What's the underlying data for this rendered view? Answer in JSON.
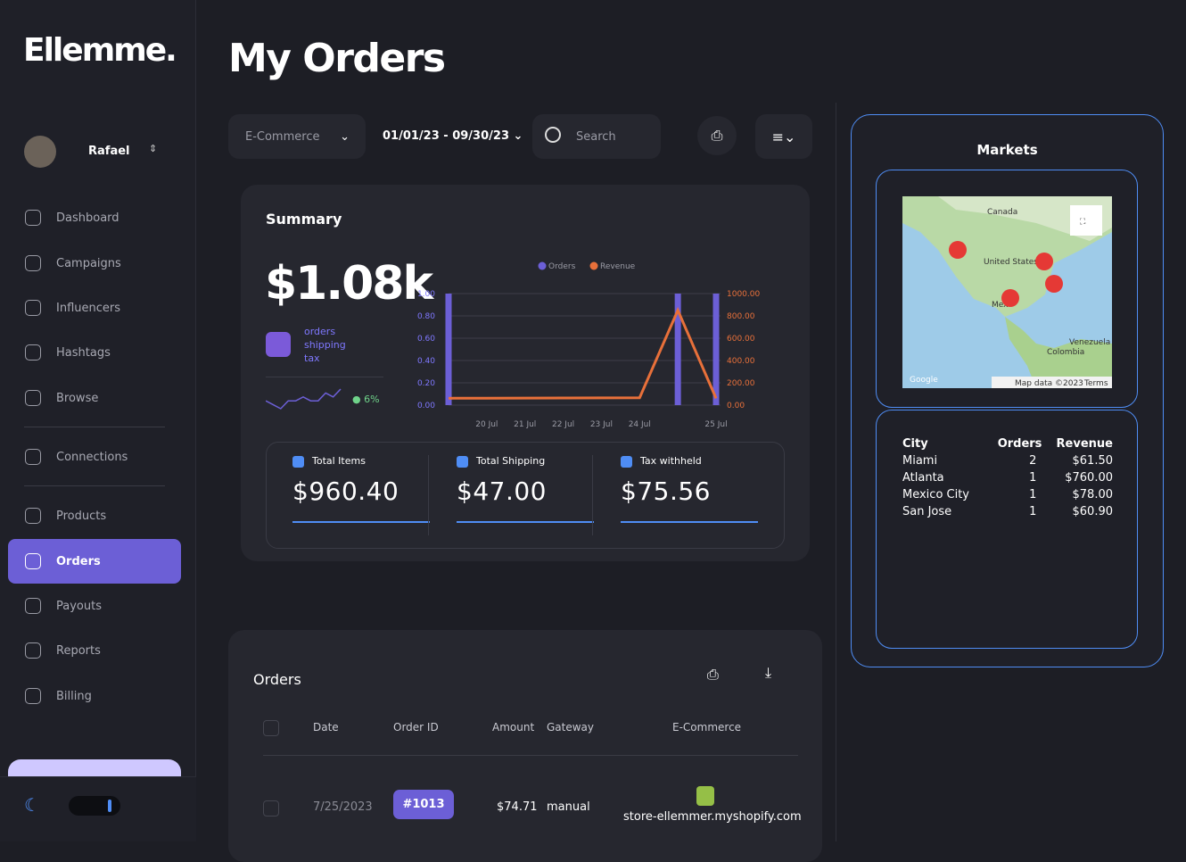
{
  "brand": "Ellemme.",
  "user": "Rafael",
  "nav": [
    "Dashboard",
    "Campaigns",
    "Influencers",
    "Hashtags",
    "Browse",
    "Connections",
    "Products",
    "Orders",
    "Payouts",
    "Reports",
    "Billing"
  ],
  "page_title": "My Orders",
  "filters": {
    "ecommerce": "E-Commerce",
    "date_range": "01/01/23 - 09/30/23",
    "search": "Search"
  },
  "summary": {
    "title": "Summary",
    "total": "$1.08k",
    "breakdown": [
      "orders",
      "shipping",
      "tax"
    ],
    "change": "6%",
    "sparkline": [
      3,
      2,
      1,
      3,
      3,
      4,
      3,
      3,
      5,
      4,
      6
    ],
    "stats": [
      {
        "label": "Total Items",
        "value": "$960.40"
      },
      {
        "label": "Total Shipping",
        "value": "$47.00"
      },
      {
        "label": "Tax withheld",
        "value": "$75.56"
      }
    ]
  },
  "chart_data": {
    "type": "combo",
    "categories": [
      null,
      "20 Jul",
      "21 Jul",
      "22 Jul",
      "23 Jul",
      "24 Jul",
      null,
      "25 Jul"
    ],
    "series": [
      {
        "name": "Orders",
        "color": "#6c5fd6",
        "kind": "bar",
        "values": [
          1,
          0,
          0,
          0,
          0,
          0,
          1,
          1
        ]
      },
      {
        "name": "Revenue",
        "color": "#e8703a",
        "kind": "line",
        "axis": "y2",
        "values": [
          61.5,
          62,
          63,
          64,
          65,
          66,
          850,
          60.9
        ]
      }
    ],
    "ylim": [
      0,
      1
    ],
    "yticks": [
      {
        "value": 0,
        "label": "0.00"
      },
      {
        "value": 0.2,
        "label": "0.20"
      },
      {
        "value": 0.4,
        "label": "0.40"
      },
      {
        "value": 0.6,
        "label": "0.60"
      },
      {
        "value": 0.8,
        "label": "0.80"
      },
      {
        "value": 1,
        "label": "1.00"
      }
    ],
    "y2lim": [
      0,
      1000
    ],
    "y2ticks": [
      {
        "value": 0,
        "label": "0.00"
      },
      {
        "value": 200,
        "label": "200.00"
      },
      {
        "value": 400,
        "label": "400.00"
      },
      {
        "value": 600,
        "label": "600.00"
      },
      {
        "value": 800,
        "label": "800.00"
      },
      {
        "value": 1000,
        "label": "1000.00"
      }
    ],
    "grid": true,
    "legend": "top"
  },
  "markets": {
    "title": "Markets",
    "map_labels": [
      "Canada",
      "United States",
      "Mex",
      "Venezuela",
      "Colombia"
    ],
    "map_brand": "Google",
    "map_footer": [
      "Map data ©2023",
      "Terms"
    ],
    "table": {
      "columns": [
        "City",
        "Orders",
        "Revenue"
      ],
      "rows": [
        [
          "Miami",
          "2",
          "$61.50"
        ],
        [
          "Atlanta",
          "1",
          "$760.00"
        ],
        [
          "Mexico City",
          "1",
          "$78.00"
        ],
        [
          "San Jose",
          "1",
          "$60.90"
        ]
      ]
    }
  },
  "orders": {
    "title": "Orders",
    "columns": [
      "Date",
      "Order ID",
      "Amount",
      "Gateway",
      "E-Commerce"
    ],
    "rows": [
      [
        "7/25/2023",
        "#1013",
        "$74.71",
        "manual",
        "store-ellemmer.myshopify.com"
      ]
    ]
  }
}
